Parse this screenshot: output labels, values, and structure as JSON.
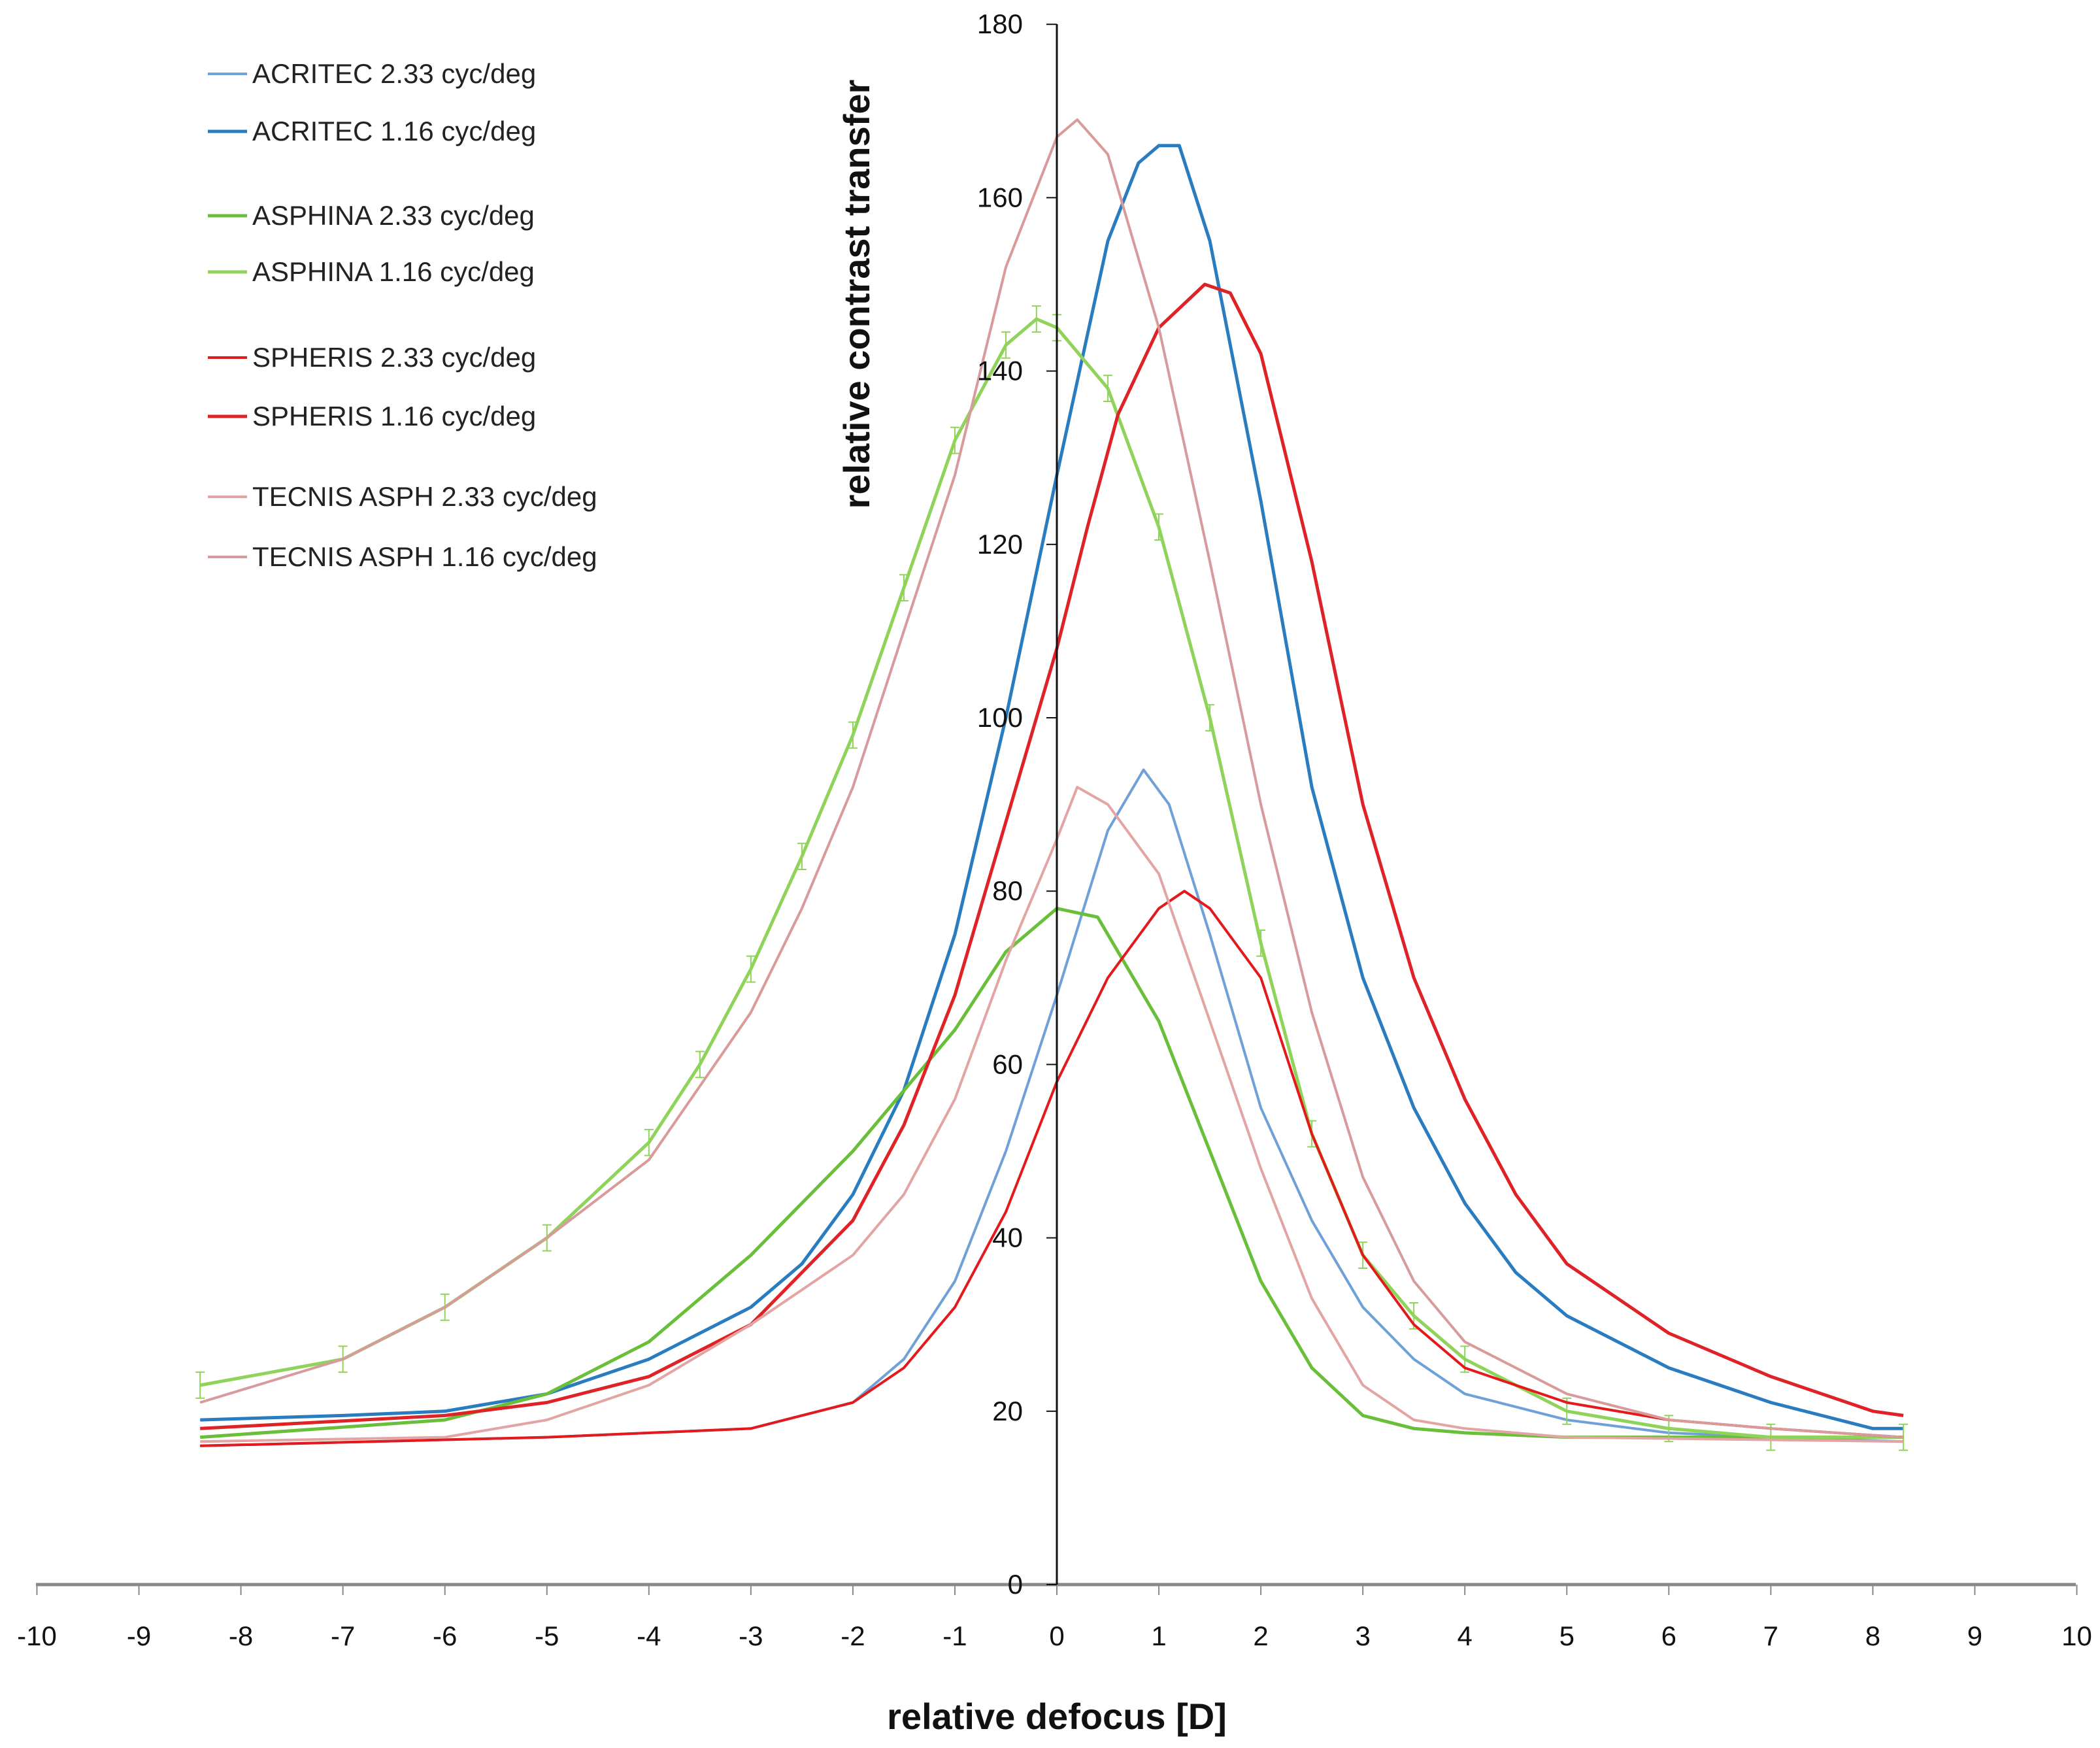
{
  "chart_data": {
    "type": "line",
    "title": "",
    "xlabel": "relative defocus [D]",
    "ylabel": "relative contrast transfer",
    "xlim": [
      -10,
      10
    ],
    "ylim": [
      0,
      180
    ],
    "xticks": [
      -10,
      -9,
      -8,
      -7,
      -6,
      -5,
      -4,
      -3,
      -2,
      -1,
      0,
      1,
      2,
      3,
      4,
      5,
      6,
      7,
      8,
      9,
      10
    ],
    "yticks": [
      0,
      20,
      40,
      60,
      80,
      100,
      120,
      140,
      160,
      180
    ],
    "grid": false,
    "legend_position": "top-left",
    "series": [
      {
        "name": "ACRITEC 2.33 cyc/deg",
        "color": "#6fa0d8",
        "width": 4,
        "x": [
          -8.4,
          -5,
          -3,
          -2,
          -1.5,
          -1,
          -0.5,
          0,
          0.5,
          0.85,
          1.1,
          1.5,
          2,
          2.5,
          3,
          3.5,
          4,
          5,
          6,
          7,
          8.3
        ],
        "y": [
          16,
          17,
          18,
          21,
          26,
          35,
          50,
          68,
          87,
          94,
          90,
          75,
          55,
          42,
          32,
          26,
          22,
          19,
          17.5,
          17,
          16.5
        ]
      },
      {
        "name": "ACRITEC 1.16 cyc/deg",
        "color": "#2a7cc0",
        "width": 5,
        "x": [
          -8.4,
          -7,
          -6,
          -5,
          -4,
          -3,
          -2.5,
          -2,
          -1.5,
          -1,
          -0.5,
          0,
          0.5,
          0.8,
          1,
          1.2,
          1.5,
          2,
          2.5,
          3,
          3.5,
          4,
          4.5,
          5,
          6,
          7,
          8,
          8.3
        ],
        "y": [
          19,
          19.5,
          20,
          22,
          26,
          32,
          37,
          45,
          57,
          75,
          100,
          128,
          155,
          164,
          166,
          166,
          155,
          125,
          92,
          70,
          55,
          44,
          36,
          31,
          25,
          21,
          18,
          18
        ]
      },
      {
        "name": "ASPHINA 2.33 cyc/deg",
        "color": "#6abf3a",
        "width": 5,
        "x": [
          -8.4,
          -6,
          -5,
          -4,
          -3,
          -2,
          -1,
          -0.5,
          0,
          0.4,
          1,
          1.5,
          2,
          2.5,
          3,
          3.5,
          4,
          5,
          8.3
        ],
        "y": [
          17,
          19,
          22,
          28,
          38,
          50,
          64,
          73,
          78,
          77,
          65,
          50,
          35,
          25,
          19.5,
          18,
          17.5,
          17,
          17
        ]
      },
      {
        "name": "ASPHINA 1.16 cyc/deg",
        "color": "#8fd35a",
        "width": 5,
        "error_bars": true,
        "x": [
          -8.4,
          -7,
          -6,
          -5,
          -4,
          -3.5,
          -3,
          -2.5,
          -2,
          -1.5,
          -1,
          -0.5,
          -0.2,
          0,
          0.5,
          1,
          1.5,
          2,
          2.5,
          3,
          3.5,
          4,
          5,
          6,
          7,
          8.3
        ],
        "y": [
          23,
          26,
          32,
          40,
          51,
          60,
          71,
          84,
          98,
          115,
          132,
          143,
          146,
          145,
          138,
          122,
          100,
          74,
          52,
          38,
          31,
          26,
          20,
          18,
          17,
          17
        ]
      },
      {
        "name": "SPHERIS 2.33 cyc/deg",
        "color": "#e3191c",
        "width": 4,
        "x": [
          -8.4,
          -5,
          -3,
          -2,
          -1.5,
          -1,
          -0.5,
          0,
          0.5,
          1,
          1.25,
          1.5,
          2,
          2.5,
          3,
          3.5,
          4,
          5,
          6,
          7,
          8.3
        ],
        "y": [
          16,
          17,
          18,
          21,
          25,
          32,
          43,
          58,
          70,
          78,
          80,
          78,
          70,
          52,
          38,
          30,
          25,
          21,
          19,
          18,
          17
        ]
      },
      {
        "name": "SPHERIS 1.16 cyc/deg",
        "color": "#de2226",
        "width": 5,
        "x": [
          -8.4,
          -6,
          -5,
          -4,
          -3,
          -2,
          -1.5,
          -1,
          -0.5,
          0,
          0.3,
          0.6,
          1,
          1.45,
          1.7,
          2,
          2.5,
          3,
          3.5,
          4,
          4.5,
          5,
          5.5,
          6,
          7,
          8,
          8.3
        ],
        "y": [
          18,
          19.5,
          21,
          24,
          30,
          42,
          53,
          68,
          88,
          108,
          122,
          135,
          145,
          150,
          149,
          142,
          118,
          90,
          70,
          56,
          45,
          37,
          33,
          29,
          24,
          20,
          19.5
        ]
      },
      {
        "name": "TECNIS ASPH 2.33 cyc/deg",
        "color": "#e3a4a4",
        "width": 4,
        "x": [
          -8.4,
          -6,
          -5,
          -4,
          -3,
          -2.5,
          -2,
          -1.5,
          -1,
          -0.5,
          0,
          0.2,
          0.5,
          1,
          1.5,
          2,
          2.5,
          3,
          3.5,
          4,
          5,
          8.3
        ],
        "y": [
          16.5,
          17,
          19,
          23,
          30,
          34,
          38,
          45,
          56,
          72,
          86,
          92,
          90,
          82,
          65,
          48,
          33,
          23,
          19,
          18,
          17,
          16.5
        ]
      },
      {
        "name": "TECNIS ASPH 1.16 cyc/deg",
        "color": "#d89a9a",
        "width": 4,
        "x": [
          -8.4,
          -7,
          -6,
          -5,
          -4,
          -3,
          -2.5,
          -2,
          -1.5,
          -1,
          -0.5,
          0,
          0.2,
          0.5,
          1,
          1.5,
          2,
          2.5,
          3,
          3.5,
          4,
          5,
          6,
          7,
          8.3
        ],
        "y": [
          21,
          26,
          32,
          40,
          49,
          66,
          78,
          92,
          110,
          128,
          152,
          167,
          169,
          165,
          145,
          118,
          90,
          66,
          47,
          35,
          28,
          22,
          19,
          18,
          17
        ]
      }
    ]
  }
}
